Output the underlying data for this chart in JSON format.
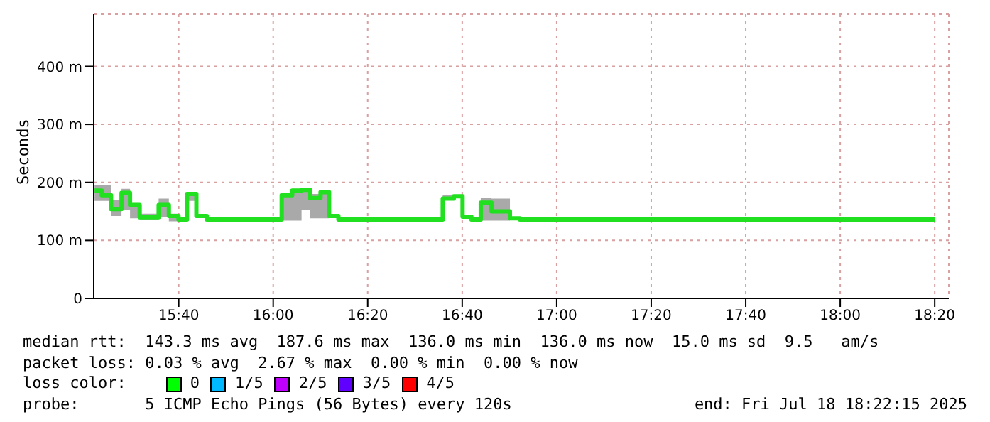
{
  "chart_data": {
    "type": "step",
    "ylabel": "Seconds",
    "x": [
      15.37,
      15.395,
      15.428,
      15.465,
      15.495,
      15.529,
      15.596,
      15.632,
      15.666,
      15.696,
      15.729,
      15.766,
      16.03,
      16.067,
      16.1,
      16.13,
      16.167,
      16.197,
      16.23,
      16.598,
      16.637,
      16.668,
      16.699,
      16.732,
      16.77,
      16.835,
      16.87,
      18.334
    ],
    "series": [
      {
        "color": "#20e020",
        "values": [
          186,
          178,
          154,
          182,
          161,
          140,
          161,
          142,
          136,
          180,
          142,
          136,
          178,
          186,
          187,
          173,
          183,
          142,
          136,
          172,
          176,
          141,
          136,
          165,
          150,
          138,
          136,
          136
        ],
        "lower": [
          168,
          168,
          142,
          152,
          138,
          136,
          141,
          133,
          136,
          168,
          142,
          136,
          134,
          134,
          152,
          138,
          138,
          142,
          136,
          170,
          176,
          141,
          136,
          134,
          134,
          138,
          136,
          136
        ],
        "upper": [
          196,
          196,
          170,
          189,
          161,
          146,
          172,
          146,
          136,
          181,
          142,
          136,
          180,
          189,
          189,
          180,
          184,
          142,
          136,
          178,
          178,
          141,
          136,
          174,
          172,
          138,
          136,
          136
        ]
      }
    ],
    "xlim": [
      15.367,
      18.383
    ],
    "xticks": [
      {
        "value": 15.6667,
        "label": "15:40"
      },
      {
        "value": 16,
        "label": "16:00"
      },
      {
        "value": 16.3333,
        "label": "16:20"
      },
      {
        "value": 16.6667,
        "label": "16:40"
      },
      {
        "value": 17,
        "label": "17:00"
      },
      {
        "value": 17.3333,
        "label": "17:20"
      },
      {
        "value": 17.6667,
        "label": "17:40"
      },
      {
        "value": 18,
        "label": "18:00"
      },
      {
        "value": 18.3333,
        "label": "18:20"
      }
    ],
    "ylim": [
      0,
      490
    ],
    "yticks": [
      0,
      {
        "value": 100,
        "label": "100 m"
      },
      {
        "value": 200,
        "label": "200 m"
      },
      {
        "value": 300,
        "label": "300 m"
      },
      {
        "value": 400,
        "label": "400 m"
      }
    ],
    "grid": true,
    "line_style": "solid",
    "annotations": [
      "median rtt:  143.3 ms avg  187.6 ms max  136.0 ms min  136.0 ms now  15.0 ms sd  9.5   am/s",
      "packet loss: 0.03 % avg  2.67 % max  0.00 % min  0.00 % now",
      "loss color:",
      "0",
      "1/5",
      "2/5",
      "3/5",
      "4/5",
      "probe:       5 ICMP Echo Pings (56 Bytes) every 120s",
      "end: Fri Jul 18 18:22:15 2025"
    ]
  }
}
